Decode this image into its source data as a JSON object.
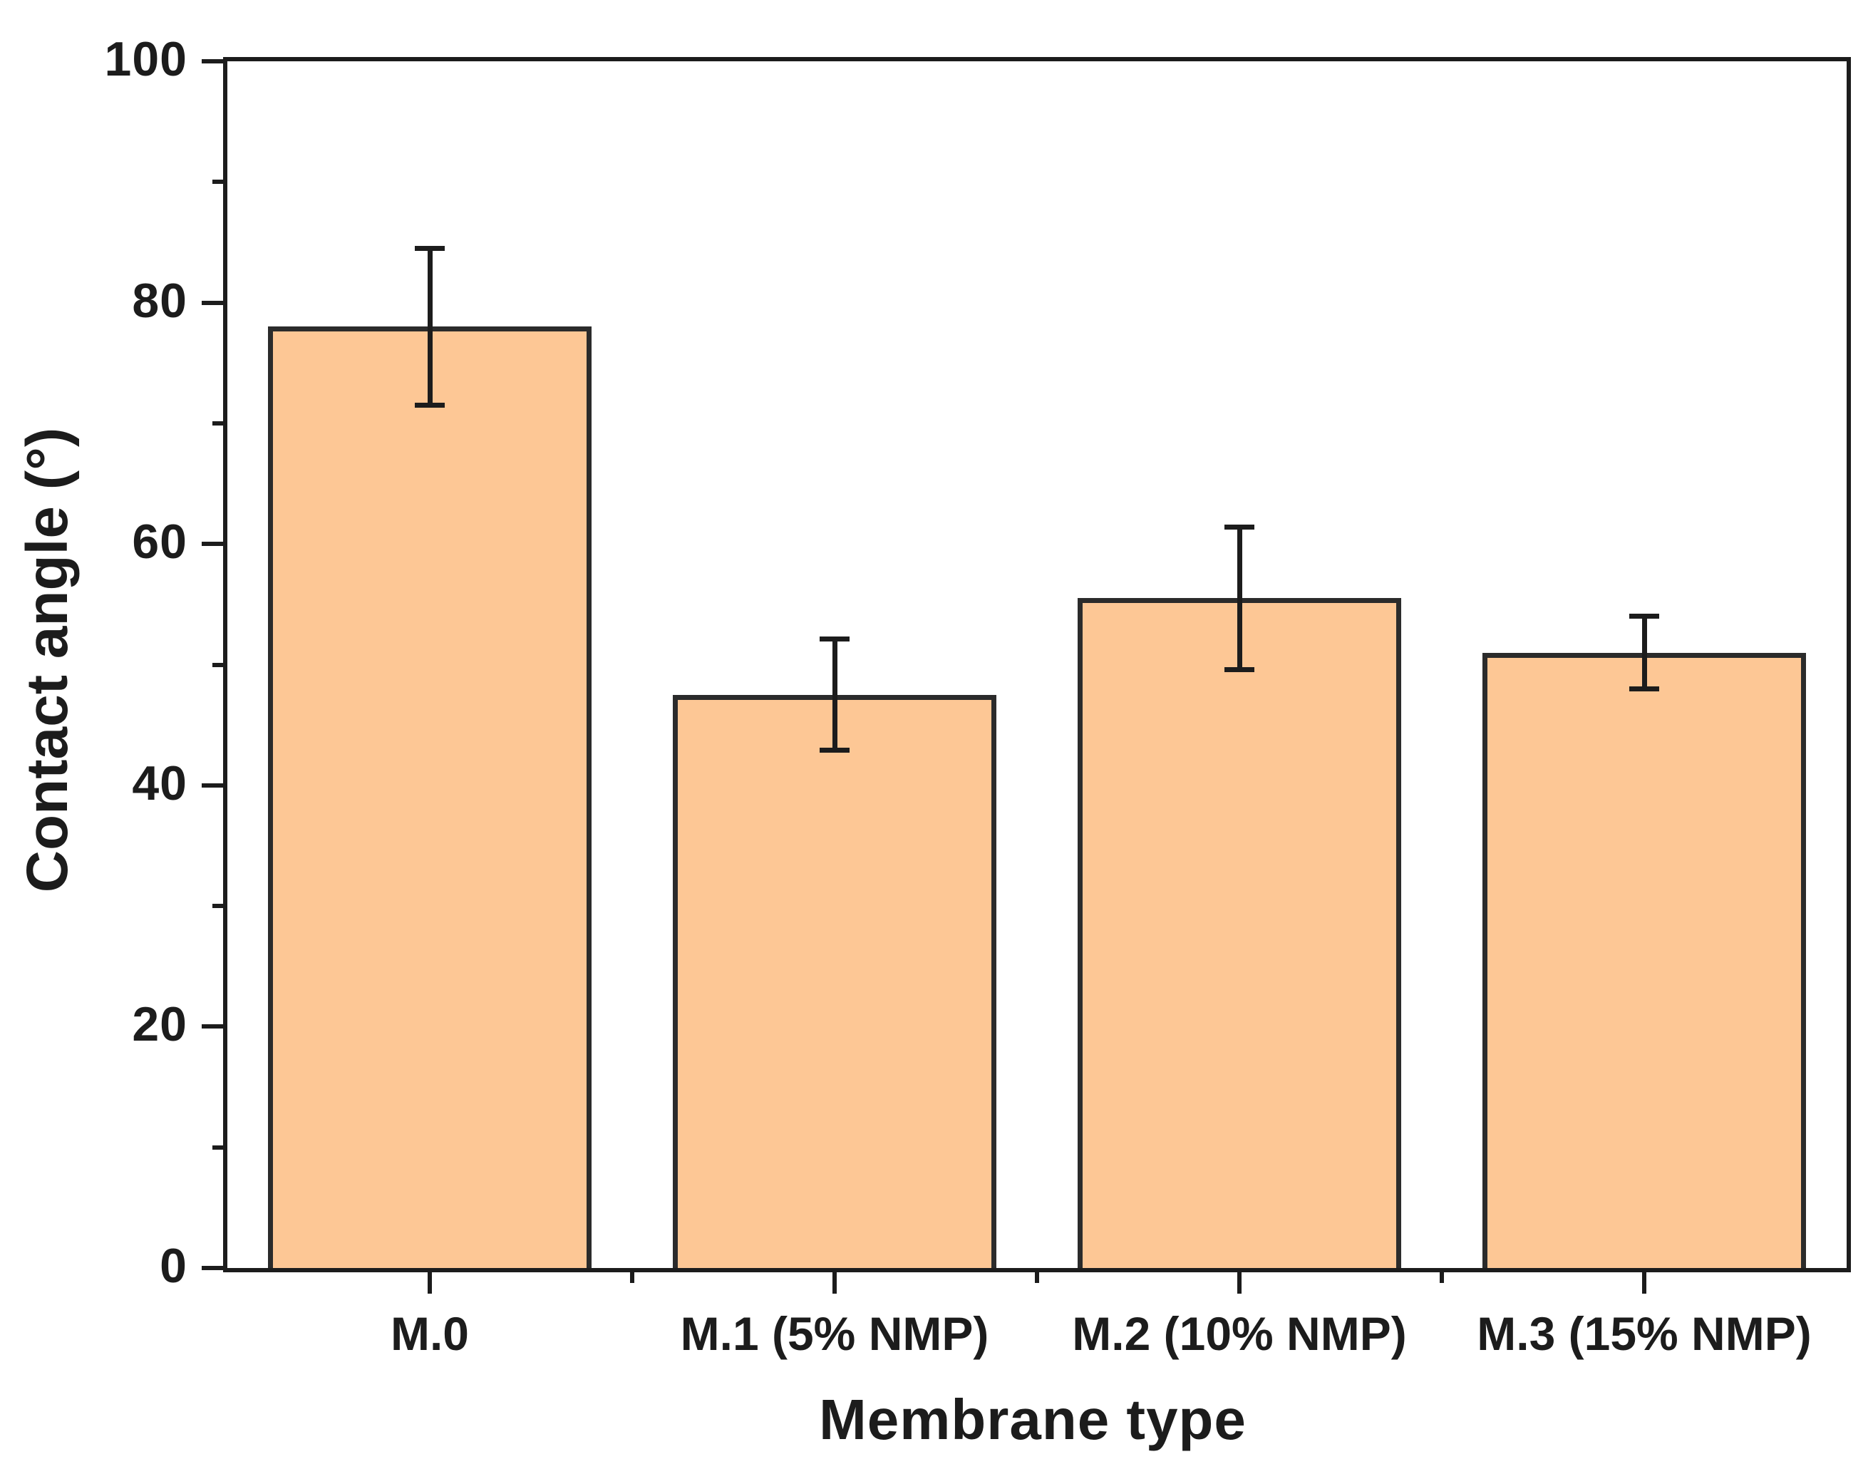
{
  "figure": {
    "background_color": "#ffffff",
    "axis_color": "#1c1c1c",
    "text_color": "#1c1c1c"
  },
  "chart_data": {
    "type": "bar",
    "title": "",
    "xlabel": "Membrane type",
    "ylabel": "Contact angle (°)",
    "categories": [
      "M.0",
      "M.1 (5% NMP)",
      "M.2 (10% NMP)",
      "M.3 (15% NMP)"
    ],
    "values": [
      78,
      47.5,
      55.5,
      51
    ],
    "error_bars": [
      6.5,
      4.6,
      5.9,
      3.0
    ],
    "ylim": [
      0,
      100
    ],
    "y_major_ticks": [
      0,
      20,
      40,
      60,
      80,
      100
    ],
    "y_minor_ticks": [
      10,
      30,
      50,
      70,
      90
    ],
    "y_tick_labels": [
      "0",
      "20",
      "40",
      "60",
      "80",
      "100"
    ],
    "bar_fill_color": "#fdc795",
    "bar_edge_color": "#2b2b2b",
    "error_bar_color": "#1c1c1c",
    "bar_width_fraction": 0.8,
    "grid": "off",
    "legend": "none",
    "frame": "full-box",
    "tick_direction": "out"
  }
}
